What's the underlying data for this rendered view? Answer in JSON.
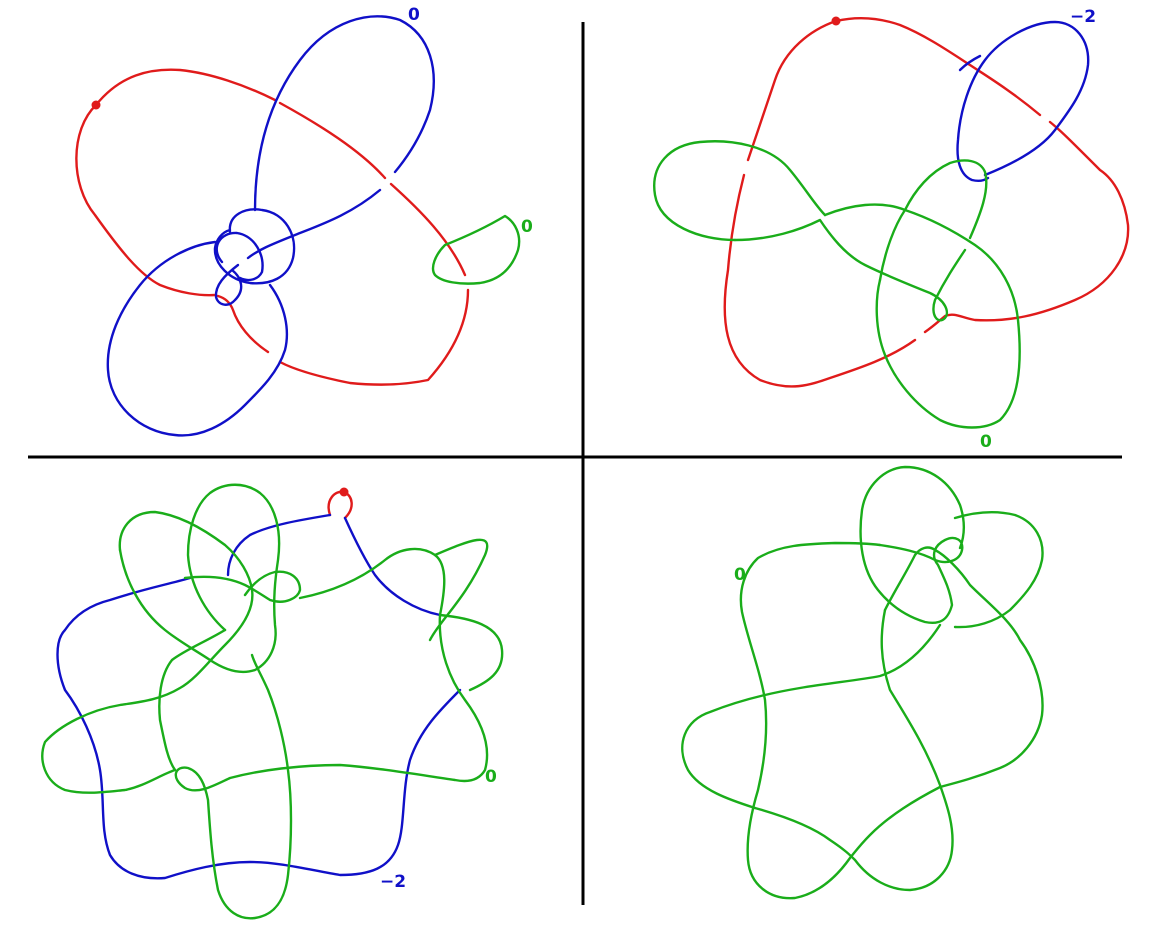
{
  "colors": {
    "red": "#e01b1b",
    "blue": "#1010c8",
    "green": "#1aad1a",
    "divider": "#000000"
  },
  "panels": {
    "top_left": {
      "labels": {
        "blue_framing": "0",
        "green_framing": "0"
      }
    },
    "top_right": {
      "labels": {
        "blue_framing": "−2",
        "green_framing": "0"
      }
    },
    "bottom_left": {
      "labels": {
        "green_framing": "0",
        "blue_framing": "−2"
      }
    },
    "bottom_right": {
      "labels": {
        "green_framing": "0"
      }
    }
  }
}
